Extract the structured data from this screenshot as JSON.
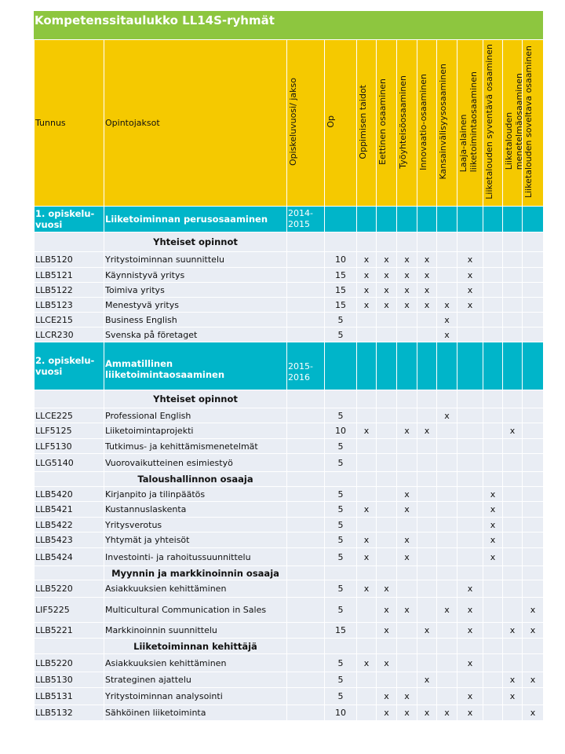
{
  "title": "Kompetenssitaulukko LL14S-ryhmät",
  "colors": {
    "title_bg": "#8dc63f",
    "header_bg": "#f5c900",
    "section_bg": "#00b5c9",
    "row_bg": "#e9edf4"
  },
  "headers": {
    "code": "Tunnus",
    "course": "Opintojaksot",
    "period": "Opiskeluvuosi/  jakso",
    "credits": "Op",
    "competencies": [
      "Oppimisen  taidot",
      "Eettinen  osaaminen",
      "Työyhteisöosaaminen",
      "Innovaatio-osaaminen",
      "Kansainvälisyysosaaminen",
      "Laaja-alainen\nliiketoimintaosaaminen",
      "Liiketalouden  syventävä  osaaminen",
      "Liiketalouden\nmenetelmäosaaminen",
      "Liiketalouden  soveltava  osaaminen"
    ]
  },
  "rows": [
    {
      "type": "section",
      "year": "1. opiskelu-\nvuosi",
      "name": "Liiketoiminnan  perusosaaminen",
      "period": "2014-\n2015"
    },
    {
      "type": "subheader",
      "label": "Yhteiset opinnot"
    },
    {
      "type": "course",
      "code": "LLB5120",
      "name": "Yritystoiminnan  suunnittelu",
      "op": "10",
      "marks": [
        "x",
        "x",
        "x",
        "x",
        "",
        "x",
        "",
        "",
        ""
      ]
    },
    {
      "type": "course",
      "code": "LLB5121",
      "name": "Käynnistyvä  yritys",
      "op": "15",
      "marks": [
        "x",
        "x",
        "x",
        "x",
        "",
        "x",
        "",
        "",
        ""
      ]
    },
    {
      "type": "course",
      "code": "LLB5122",
      "name": "Toimiva yritys",
      "op": "15",
      "marks": [
        "x",
        "x",
        "x",
        "x",
        "",
        "x",
        "",
        "",
        ""
      ]
    },
    {
      "type": "course",
      "code": "LLB5123",
      "name": "Menestyvä  yritys",
      "op": "15",
      "marks": [
        "x",
        "x",
        "x",
        "x",
        "x",
        "x",
        "",
        "",
        ""
      ]
    },
    {
      "type": "course",
      "code": "LLCE215",
      "name": "Business English",
      "op": "5",
      "marks": [
        "",
        "",
        "",
        "",
        "x",
        "",
        "",
        "",
        ""
      ]
    },
    {
      "type": "course",
      "code": "LLCR230",
      "name": "Svenska på företaget",
      "op": "5",
      "marks": [
        "",
        "",
        "",
        "",
        "x",
        "",
        "",
        "",
        ""
      ]
    },
    {
      "type": "section",
      "year": "2. opiskelu-\nvuosi",
      "name": "Ammatillinen\nliiketoimintaosaaminen",
      "period": "2015-\n2016"
    },
    {
      "type": "subheader",
      "label": "Yhteiset opinnot"
    },
    {
      "type": "course",
      "code": "LLCE225",
      "name": "Professional English",
      "op": "5",
      "marks": [
        "",
        "",
        "",
        "",
        "x",
        "",
        "",
        "",
        ""
      ]
    },
    {
      "type": "course",
      "code": "LLF5125",
      "name": "Liiketoimintaprojekti",
      "op": "10",
      "marks": [
        "x",
        "",
        "x",
        "x",
        "",
        "",
        "",
        "x",
        ""
      ]
    },
    {
      "type": "course",
      "code": "LLF5130",
      "name": "Tutkimus-  ja kehittämismenetelmät",
      "op": "5",
      "marks": [
        "",
        "",
        "",
        "",
        "",
        "",
        "",
        "",
        ""
      ]
    },
    {
      "type": "course",
      "code": "LLG5140",
      "name": "Vuorovaikutteinen  esimiestyö",
      "op": "5",
      "marks": [
        "",
        "",
        "",
        "",
        "",
        "",
        "",
        "",
        ""
      ]
    },
    {
      "type": "subheader",
      "label": "Taloushallinnon  osaaja"
    },
    {
      "type": "course",
      "code": "LLB5420",
      "name": "Kirjanpito  ja tilinpäätös",
      "op": "5",
      "marks": [
        "",
        "",
        "x",
        "",
        "",
        "",
        "x",
        "",
        ""
      ]
    },
    {
      "type": "course",
      "code": "LLB5421",
      "name": "Kustannuslaskenta",
      "op": "5",
      "marks": [
        "x",
        "",
        "x",
        "",
        "",
        "",
        "x",
        "",
        ""
      ]
    },
    {
      "type": "course",
      "code": "LLB5422",
      "name": "Yritysverotus",
      "op": "5",
      "marks": [
        "",
        "",
        "",
        "",
        "",
        "",
        "x",
        "",
        ""
      ]
    },
    {
      "type": "course",
      "code": "LLB5423",
      "name": "Yhtymät  ja yhteisöt",
      "op": "5",
      "marks": [
        "x",
        "",
        "x",
        "",
        "",
        "",
        "x",
        "",
        ""
      ]
    },
    {
      "type": "course",
      "code": "LLB5424",
      "name": "Investointi-   ja rahoitussuunnittelu",
      "op": "5",
      "marks": [
        "x",
        "",
        "x",
        "",
        "",
        "",
        "x",
        "",
        ""
      ]
    },
    {
      "type": "subheader",
      "label": "Myynnin ja markkinoinnin  osaaja"
    },
    {
      "type": "course",
      "code": "LLB5220",
      "name": "Asiakkuuksien  kehittäminen",
      "op": "5",
      "marks": [
        "x",
        "x",
        "",
        "",
        "",
        "x",
        "",
        "",
        ""
      ]
    },
    {
      "type": "course",
      "code": "LIF5225",
      "name": "Multicultural  Communication  in Sales",
      "op": "5",
      "marks": [
        "",
        "x",
        "x",
        "",
        "x",
        "x",
        "",
        "",
        "x"
      ]
    },
    {
      "type": "course",
      "code": "LLB5221",
      "name": "Markkinoinnin  suunnittelu",
      "op": "15",
      "marks": [
        "",
        "x",
        "",
        "x",
        "",
        "x",
        "",
        "x",
        "x"
      ]
    },
    {
      "type": "subheader",
      "label": "Liiketoiminnan  kehittäjä"
    },
    {
      "type": "course",
      "code": "LLB5220",
      "name": "Asiakkuuksien  kehittäminen",
      "op": "5",
      "marks": [
        "x",
        "x",
        "",
        "",
        "",
        "x",
        "",
        "",
        ""
      ]
    },
    {
      "type": "course",
      "code": "LLB5130",
      "name": "Strateginen  ajattelu",
      "op": "5",
      "marks": [
        "",
        "",
        "",
        "x",
        "",
        "",
        "",
        "x",
        "x"
      ]
    },
    {
      "type": "course",
      "code": "LLB5131",
      "name": "Yritystoiminnan  analysointi",
      "op": "5",
      "marks": [
        "",
        "x",
        "x",
        "",
        "",
        "x",
        "",
        "x",
        ""
      ]
    },
    {
      "type": "course",
      "code": "LLB5132",
      "name": "Sähköinen  liiketoiminta",
      "op": "10",
      "marks": [
        "",
        "x",
        "x",
        "x",
        "x",
        "x",
        "",
        "",
        "x"
      ]
    }
  ]
}
